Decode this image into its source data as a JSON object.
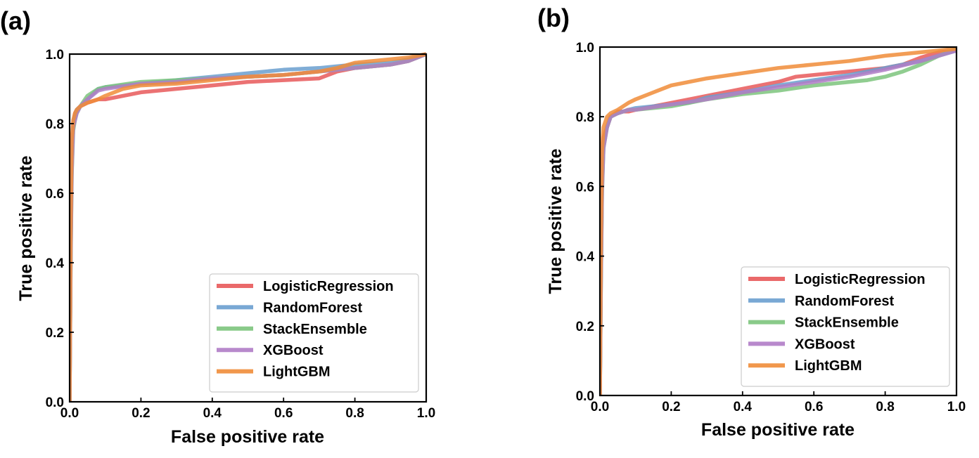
{
  "chart_data": [
    {
      "type": "line",
      "panel_label": "(a)",
      "xlabel": "False positive rate",
      "ylabel": "True positive rate",
      "xlim": [
        0,
        1
      ],
      "ylim": [
        0,
        1
      ],
      "xticks": [
        "0.0",
        "0.2",
        "0.4",
        "0.6",
        "0.8",
        "1.0"
      ],
      "yticks": [
        "0.0",
        "0.2",
        "0.4",
        "0.6",
        "0.8",
        "1.0"
      ],
      "grid": false,
      "legend_position": "lower-right",
      "series": [
        {
          "name": "LogisticRegression",
          "color": "#e8595a",
          "x": [
            0,
            0.003,
            0.006,
            0.01,
            0.015,
            0.02,
            0.03,
            0.05,
            0.08,
            0.1,
            0.15,
            0.2,
            0.3,
            0.4,
            0.5,
            0.6,
            0.7,
            0.75,
            0.8,
            0.9,
            0.95,
            1.0
          ],
          "y": [
            0,
            0.45,
            0.72,
            0.8,
            0.83,
            0.84,
            0.85,
            0.86,
            0.87,
            0.87,
            0.88,
            0.89,
            0.9,
            0.91,
            0.92,
            0.925,
            0.93,
            0.95,
            0.96,
            0.97,
            0.98,
            1.0
          ]
        },
        {
          "name": "RandomForest",
          "color": "#6a9fcf",
          "x": [
            0,
            0.003,
            0.006,
            0.01,
            0.015,
            0.02,
            0.03,
            0.05,
            0.08,
            0.1,
            0.2,
            0.3,
            0.4,
            0.5,
            0.6,
            0.7,
            0.8,
            0.9,
            0.95,
            1.0
          ],
          "y": [
            0,
            0.45,
            0.68,
            0.8,
            0.82,
            0.84,
            0.85,
            0.87,
            0.9,
            0.905,
            0.915,
            0.925,
            0.935,
            0.945,
            0.955,
            0.96,
            0.97,
            0.975,
            0.985,
            1.0
          ]
        },
        {
          "name": "StackEnsemble",
          "color": "#7cc47c",
          "x": [
            0,
            0.003,
            0.006,
            0.01,
            0.015,
            0.02,
            0.03,
            0.05,
            0.08,
            0.1,
            0.2,
            0.3,
            0.4,
            0.5,
            0.6,
            0.7,
            0.8,
            0.9,
            0.95,
            1.0
          ],
          "y": [
            0,
            0.4,
            0.65,
            0.78,
            0.81,
            0.83,
            0.85,
            0.88,
            0.9,
            0.905,
            0.92,
            0.925,
            0.93,
            0.935,
            0.94,
            0.95,
            0.96,
            0.97,
            0.98,
            1.0
          ]
        },
        {
          "name": "XGBoost",
          "color": "#b07cc6",
          "x": [
            0,
            0.003,
            0.006,
            0.01,
            0.015,
            0.02,
            0.03,
            0.05,
            0.08,
            0.1,
            0.2,
            0.3,
            0.4,
            0.5,
            0.6,
            0.7,
            0.8,
            0.9,
            0.95,
            1.0
          ],
          "y": [
            0,
            0.42,
            0.66,
            0.79,
            0.81,
            0.83,
            0.85,
            0.87,
            0.895,
            0.9,
            0.915,
            0.92,
            0.93,
            0.935,
            0.94,
            0.95,
            0.96,
            0.97,
            0.98,
            1.0
          ]
        },
        {
          "name": "LightGBM",
          "color": "#f08c38",
          "x": [
            0,
            0.003,
            0.006,
            0.01,
            0.015,
            0.02,
            0.03,
            0.05,
            0.08,
            0.1,
            0.15,
            0.2,
            0.3,
            0.4,
            0.5,
            0.6,
            0.7,
            0.75,
            0.8,
            0.9,
            0.95,
            1.0
          ],
          "y": [
            0,
            0.5,
            0.75,
            0.81,
            0.83,
            0.84,
            0.85,
            0.86,
            0.87,
            0.88,
            0.9,
            0.91,
            0.915,
            0.925,
            0.935,
            0.94,
            0.95,
            0.96,
            0.975,
            0.985,
            0.99,
            1.0
          ]
        }
      ]
    },
    {
      "type": "line",
      "panel_label": "(b)",
      "xlabel": "False positive rate",
      "ylabel": "True positive rate",
      "xlim": [
        0,
        1
      ],
      "ylim": [
        0,
        1
      ],
      "xticks": [
        "0.0",
        "0.2",
        "0.4",
        "0.6",
        "0.8",
        "1.0"
      ],
      "yticks": [
        "0.0",
        "0.2",
        "0.4",
        "0.6",
        "0.8",
        "1.0"
      ],
      "grid": false,
      "legend_position": "lower-right",
      "series": [
        {
          "name": "LogisticRegression",
          "color": "#e8595a",
          "x": [
            0,
            0.003,
            0.006,
            0.01,
            0.02,
            0.03,
            0.05,
            0.08,
            0.1,
            0.15,
            0.2,
            0.25,
            0.3,
            0.35,
            0.4,
            0.5,
            0.55,
            0.6,
            0.7,
            0.8,
            0.85,
            0.9,
            0.95,
            1.0
          ],
          "y": [
            0,
            0.4,
            0.65,
            0.74,
            0.77,
            0.8,
            0.815,
            0.815,
            0.82,
            0.83,
            0.84,
            0.85,
            0.86,
            0.87,
            0.88,
            0.9,
            0.915,
            0.92,
            0.93,
            0.94,
            0.95,
            0.97,
            0.985,
            0.99
          ]
        },
        {
          "name": "RandomForest",
          "color": "#6a9fcf",
          "x": [
            0,
            0.003,
            0.006,
            0.01,
            0.02,
            0.03,
            0.05,
            0.08,
            0.1,
            0.2,
            0.25,
            0.3,
            0.4,
            0.5,
            0.6,
            0.7,
            0.8,
            0.9,
            0.95,
            1.0
          ],
          "y": [
            0,
            0.35,
            0.6,
            0.72,
            0.77,
            0.8,
            0.81,
            0.82,
            0.825,
            0.835,
            0.84,
            0.855,
            0.87,
            0.89,
            0.905,
            0.92,
            0.94,
            0.96,
            0.975,
            0.99
          ]
        },
        {
          "name": "StackEnsemble",
          "color": "#7cc47c",
          "x": [
            0,
            0.003,
            0.006,
            0.01,
            0.02,
            0.03,
            0.05,
            0.08,
            0.1,
            0.2,
            0.25,
            0.3,
            0.4,
            0.5,
            0.6,
            0.7,
            0.75,
            0.8,
            0.85,
            0.9,
            0.95,
            1.0
          ],
          "y": [
            0,
            0.33,
            0.58,
            0.71,
            0.77,
            0.8,
            0.81,
            0.82,
            0.82,
            0.83,
            0.84,
            0.85,
            0.865,
            0.875,
            0.89,
            0.9,
            0.905,
            0.915,
            0.93,
            0.95,
            0.975,
            0.995
          ]
        },
        {
          "name": "XGBoost",
          "color": "#b07cc6",
          "x": [
            0,
            0.003,
            0.006,
            0.01,
            0.02,
            0.03,
            0.05,
            0.08,
            0.1,
            0.2,
            0.3,
            0.4,
            0.5,
            0.6,
            0.7,
            0.8,
            0.9,
            0.95,
            1.0
          ],
          "y": [
            0,
            0.34,
            0.59,
            0.71,
            0.77,
            0.8,
            0.81,
            0.82,
            0.82,
            0.835,
            0.85,
            0.87,
            0.885,
            0.9,
            0.915,
            0.935,
            0.96,
            0.975,
            0.99
          ]
        },
        {
          "name": "LightGBM",
          "color": "#f08c38",
          "x": [
            0,
            0.003,
            0.006,
            0.01,
            0.02,
            0.03,
            0.05,
            0.08,
            0.1,
            0.15,
            0.2,
            0.25,
            0.3,
            0.4,
            0.5,
            0.6,
            0.7,
            0.8,
            0.9,
            0.95,
            1.0
          ],
          "y": [
            0,
            0.45,
            0.7,
            0.77,
            0.8,
            0.81,
            0.82,
            0.84,
            0.85,
            0.87,
            0.89,
            0.9,
            0.91,
            0.925,
            0.94,
            0.95,
            0.96,
            0.975,
            0.985,
            0.99,
            0.995
          ]
        }
      ]
    }
  ]
}
